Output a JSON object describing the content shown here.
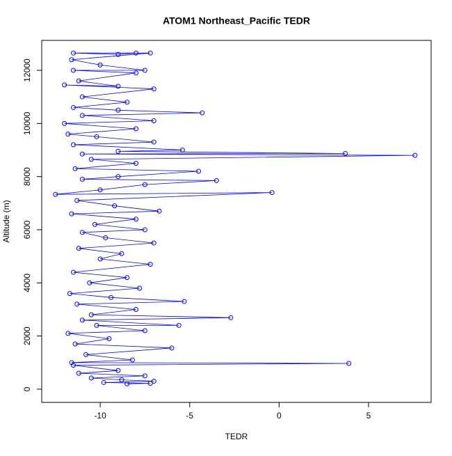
{
  "chart_data": {
    "type": "line",
    "title": "ATOM1 Northeast_Pacific TEDR",
    "xlabel": "TEDR",
    "ylabel": "Altitude (m)",
    "color": "#0000ff",
    "markers": true,
    "xlim": [
      -13.27,
      8.5
    ],
    "ylim": [
      -498,
      13127
    ],
    "xticks": [
      -10,
      -5,
      0,
      5
    ],
    "yticks": [
      0,
      2000,
      4000,
      6000,
      8000,
      10000,
      12000
    ],
    "x": [
      -8.5,
      -7.2,
      -9.8,
      -7.0,
      -8.8,
      -10.5,
      -7.5,
      -11.2,
      -9.0,
      -11.5,
      3.9,
      -11.6,
      -8.2,
      -10.8,
      -6.0,
      -11.4,
      -9.5,
      -11.8,
      -7.5,
      -10.2,
      -5.6,
      -11.0,
      -2.7,
      -10.5,
      -8.0,
      -11.3,
      -5.3,
      -9.4,
      -11.7,
      -7.8,
      -10.6,
      -8.5,
      -11.5,
      -7.2,
      -10.0,
      -8.8,
      -11.2,
      -7.0,
      -9.7,
      -11.0,
      -7.5,
      -10.3,
      -8.0,
      -11.6,
      -6.7,
      -9.2,
      -11.3,
      -0.4,
      -12.5,
      -10.0,
      -7.5,
      -3.5,
      -11.0,
      -9.0,
      -4.5,
      -11.4,
      -8.0,
      -10.5,
      7.6,
      -11.0,
      3.7,
      -9.0,
      -5.4,
      -11.5,
      -7.0,
      -10.2,
      -11.8,
      -8.0,
      -12.0,
      -7.0,
      -11.0,
      -4.3,
      -9.0,
      -11.5,
      -8.5,
      -11.0,
      -7.0,
      -12.0,
      -9.0,
      -11.2,
      -8.0,
      -11.5,
      -7.5,
      -10.0,
      -11.6,
      -7.2,
      -11.5,
      -9.0,
      -8.0
    ],
    "values": [
      200,
      220,
      250,
      300,
      350,
      420,
      500,
      600,
      700,
      900,
      970,
      1000,
      1100,
      1300,
      1550,
      1700,
      1900,
      2100,
      2200,
      2400,
      2400,
      2600,
      2690,
      2800,
      3000,
      3200,
      3300,
      3450,
      3600,
      3800,
      4000,
      4200,
      4400,
      4700,
      4900,
      5100,
      5300,
      5500,
      5700,
      5900,
      6000,
      6200,
      6400,
      6600,
      6700,
      6900,
      7100,
      7400,
      7330,
      7500,
      7700,
      7850,
      7900,
      8000,
      8200,
      8300,
      8500,
      8650,
      8800,
      8850,
      8870,
      8950,
      9000,
      9200,
      9300,
      9500,
      9600,
      9800,
      10000,
      10100,
      10300,
      10400,
      10500,
      10600,
      10800,
      11000,
      11300,
      11450,
      11400,
      11600,
      11900,
      12000,
      12000,
      12200,
      12400,
      12650,
      12650,
      12600,
      12650
    ]
  }
}
